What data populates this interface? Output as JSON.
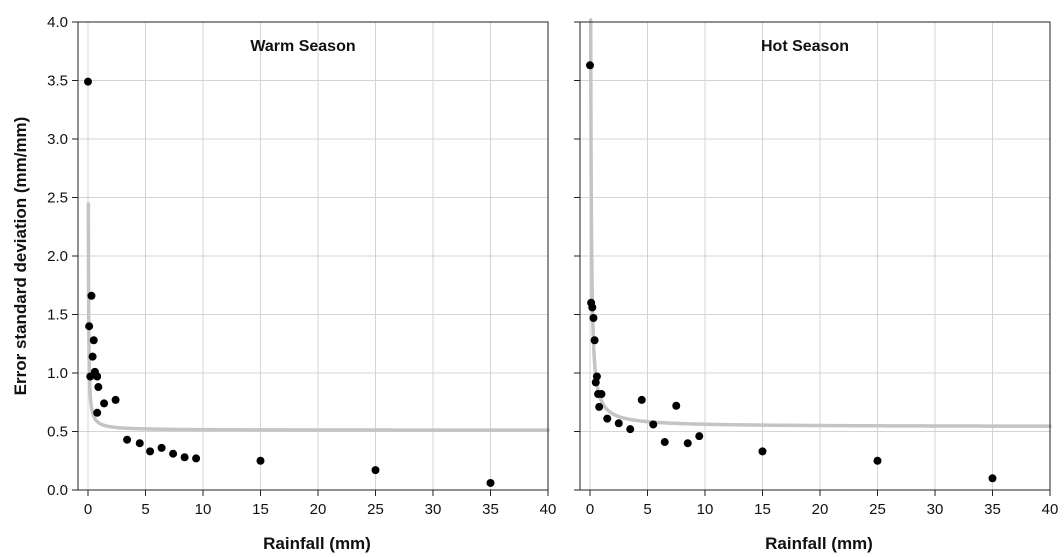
{
  "chart_data": {
    "type": "scatter",
    "ylabel": "Error standard deviation (mm/mm)",
    "ylim": [
      0,
      4
    ],
    "y_ticks": [
      "0.0",
      "0.5",
      "1.0",
      "1.5",
      "2.0",
      "2.5",
      "3.0",
      "3.5",
      "4.0"
    ],
    "grid": true,
    "panels": [
      {
        "title": "Warm Season",
        "xlabel": "Rainfall (mm)",
        "xlim": [
          0,
          40
        ],
        "x_ticks": [
          "0",
          "5",
          "10",
          "15",
          "20",
          "25",
          "30",
          "35",
          "40"
        ],
        "points": [
          {
            "x": 0.0,
            "y": 3.49
          },
          {
            "x": 0.1,
            "y": 1.4
          },
          {
            "x": 0.3,
            "y": 1.66
          },
          {
            "x": 0.2,
            "y": 0.97
          },
          {
            "x": 0.4,
            "y": 1.14
          },
          {
            "x": 0.5,
            "y": 1.28
          },
          {
            "x": 0.6,
            "y": 1.01
          },
          {
            "x": 0.8,
            "y": 0.97
          },
          {
            "x": 0.9,
            "y": 0.88
          },
          {
            "x": 0.8,
            "y": 0.66
          },
          {
            "x": 1.4,
            "y": 0.74
          },
          {
            "x": 2.4,
            "y": 0.77
          },
          {
            "x": 3.4,
            "y": 0.43
          },
          {
            "x": 4.5,
            "y": 0.4
          },
          {
            "x": 5.4,
            "y": 0.33
          },
          {
            "x": 6.4,
            "y": 0.36
          },
          {
            "x": 7.4,
            "y": 0.31
          },
          {
            "x": 8.4,
            "y": 0.28
          },
          {
            "x": 9.4,
            "y": 0.27
          },
          {
            "x": 15.0,
            "y": 0.25
          },
          {
            "x": 25.0,
            "y": 0.17
          },
          {
            "x": 35.0,
            "y": 0.06
          }
        ],
        "fit_curve": {
          "a": 0.51,
          "b": 0.06,
          "c": 1.0
        }
      },
      {
        "title": "Hot Season",
        "xlabel": "Rainfall (mm)",
        "xlim": [
          0,
          40
        ],
        "x_ticks": [
          "0",
          "5",
          "10",
          "15",
          "20",
          "25",
          "30",
          "35",
          "40"
        ],
        "points": [
          {
            "x": 0.0,
            "y": 3.63
          },
          {
            "x": 0.1,
            "y": 1.6
          },
          {
            "x": 0.2,
            "y": 1.56
          },
          {
            "x": 0.3,
            "y": 1.47
          },
          {
            "x": 0.4,
            "y": 1.28
          },
          {
            "x": 0.5,
            "y": 0.92
          },
          {
            "x": 0.6,
            "y": 0.97
          },
          {
            "x": 0.7,
            "y": 0.82
          },
          {
            "x": 0.8,
            "y": 0.71
          },
          {
            "x": 1.0,
            "y": 0.82
          },
          {
            "x": 1.5,
            "y": 0.61
          },
          {
            "x": 2.5,
            "y": 0.57
          },
          {
            "x": 3.5,
            "y": 0.52
          },
          {
            "x": 4.5,
            "y": 0.77
          },
          {
            "x": 5.5,
            "y": 0.56
          },
          {
            "x": 6.5,
            "y": 0.41
          },
          {
            "x": 7.5,
            "y": 0.72
          },
          {
            "x": 8.5,
            "y": 0.4
          },
          {
            "x": 9.5,
            "y": 0.46
          },
          {
            "x": 15.0,
            "y": 0.33
          },
          {
            "x": 25.0,
            "y": 0.25
          },
          {
            "x": 35.0,
            "y": 0.1
          }
        ],
        "fit_curve": {
          "a": 0.54,
          "b": 0.22,
          "c": 0.6
        }
      }
    ]
  }
}
